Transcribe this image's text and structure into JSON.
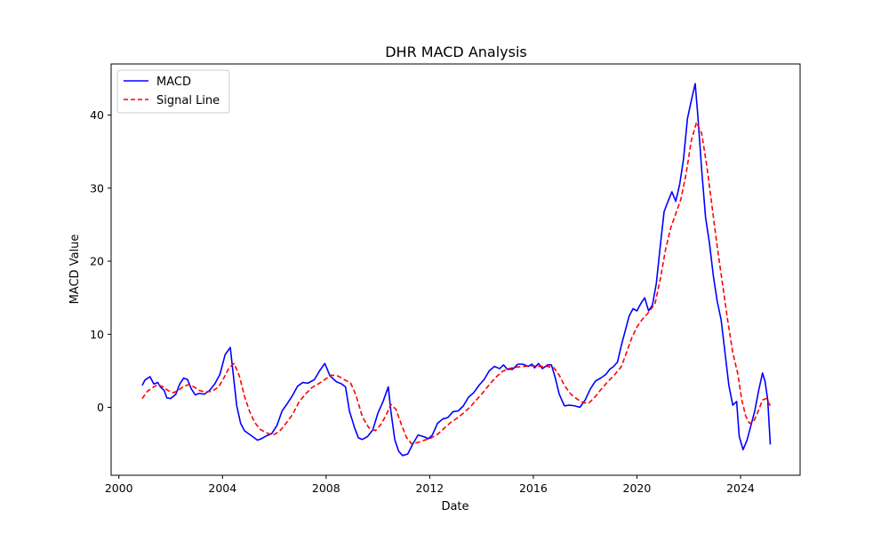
{
  "chart_data": {
    "type": "line",
    "title": "DHR MACD Analysis",
    "xlabel": "Date",
    "ylabel": "MACD Value",
    "xlim": [
      1999.7,
      2026.3
    ],
    "ylim": [
      -9.3,
      47.0
    ],
    "x_ticks": [
      2000,
      2004,
      2008,
      2012,
      2016,
      2020,
      2024
    ],
    "x_tick_labels": [
      "2000",
      "2004",
      "2008",
      "2012",
      "2016",
      "2020",
      "2024"
    ],
    "y_ticks": [
      0,
      10,
      20,
      30,
      40
    ],
    "y_tick_labels": [
      "0",
      "10",
      "20",
      "30",
      "40"
    ],
    "grid": false,
    "legend": {
      "placement": "top-left"
    },
    "series": [
      {
        "name": "MACD",
        "color": "#0000ff",
        "dash": "solid",
        "points": [
          [
            2000.9,
            3.0
          ],
          [
            2001.0,
            3.7
          ],
          [
            2001.2,
            4.2
          ],
          [
            2001.35,
            3.2
          ],
          [
            2001.5,
            3.4
          ],
          [
            2001.6,
            2.8
          ],
          [
            2001.75,
            2.3
          ],
          [
            2001.85,
            1.3
          ],
          [
            2002.0,
            1.2
          ],
          [
            2002.2,
            1.8
          ],
          [
            2002.35,
            3.2
          ],
          [
            2002.5,
            4.0
          ],
          [
            2002.65,
            3.8
          ],
          [
            2002.8,
            2.5
          ],
          [
            2002.95,
            1.7
          ],
          [
            2003.1,
            1.9
          ],
          [
            2003.3,
            1.8
          ],
          [
            2003.5,
            2.3
          ],
          [
            2003.7,
            3.2
          ],
          [
            2003.9,
            4.5
          ],
          [
            2004.1,
            7.2
          ],
          [
            2004.3,
            8.2
          ],
          [
            2004.4,
            5.0
          ],
          [
            2004.55,
            0.2
          ],
          [
            2004.7,
            -2.2
          ],
          [
            2004.85,
            -3.2
          ],
          [
            2005.0,
            -3.6
          ],
          [
            2005.2,
            -4.1
          ],
          [
            2005.35,
            -4.5
          ],
          [
            2005.5,
            -4.3
          ],
          [
            2005.7,
            -3.9
          ],
          [
            2005.9,
            -3.6
          ],
          [
            2006.1,
            -2.5
          ],
          [
            2006.3,
            -0.5
          ],
          [
            2006.5,
            0.5
          ],
          [
            2006.7,
            1.6
          ],
          [
            2006.9,
            2.9
          ],
          [
            2007.1,
            3.4
          ],
          [
            2007.3,
            3.3
          ],
          [
            2007.55,
            3.8
          ],
          [
            2007.75,
            5.0
          ],
          [
            2007.95,
            6.0
          ],
          [
            2008.15,
            4.3
          ],
          [
            2008.4,
            3.5
          ],
          [
            2008.6,
            3.2
          ],
          [
            2008.75,
            2.8
          ],
          [
            2008.9,
            -0.5
          ],
          [
            2009.1,
            -2.8
          ],
          [
            2009.25,
            -4.2
          ],
          [
            2009.4,
            -4.4
          ],
          [
            2009.6,
            -4.0
          ],
          [
            2009.8,
            -3.1
          ],
          [
            2010.0,
            -0.8
          ],
          [
            2010.2,
            0.8
          ],
          [
            2010.4,
            2.8
          ],
          [
            2010.5,
            -0.5
          ],
          [
            2010.65,
            -4.4
          ],
          [
            2010.8,
            -6.0
          ],
          [
            2010.95,
            -6.6
          ],
          [
            2011.15,
            -6.4
          ],
          [
            2011.35,
            -5.0
          ],
          [
            2011.55,
            -3.8
          ],
          [
            2011.75,
            -4.0
          ],
          [
            2011.95,
            -4.3
          ],
          [
            2012.1,
            -3.8
          ],
          [
            2012.3,
            -2.2
          ],
          [
            2012.5,
            -1.6
          ],
          [
            2012.7,
            -1.4
          ],
          [
            2012.9,
            -0.6
          ],
          [
            2013.1,
            -0.5
          ],
          [
            2013.3,
            0.2
          ],
          [
            2013.5,
            1.4
          ],
          [
            2013.7,
            2.0
          ],
          [
            2013.9,
            3.0
          ],
          [
            2014.1,
            3.8
          ],
          [
            2014.3,
            5.0
          ],
          [
            2014.5,
            5.6
          ],
          [
            2014.7,
            5.3
          ],
          [
            2014.85,
            5.8
          ],
          [
            2015.0,
            5.2
          ],
          [
            2015.2,
            5.2
          ],
          [
            2015.4,
            5.9
          ],
          [
            2015.6,
            5.9
          ],
          [
            2015.8,
            5.6
          ],
          [
            2015.95,
            5.9
          ],
          [
            2016.05,
            5.4
          ],
          [
            2016.2,
            6.0
          ],
          [
            2016.35,
            5.3
          ],
          [
            2016.55,
            5.8
          ],
          [
            2016.7,
            5.8
          ],
          [
            2016.85,
            4.0
          ],
          [
            2017.0,
            1.8
          ],
          [
            2017.2,
            0.2
          ],
          [
            2017.4,
            0.3
          ],
          [
            2017.6,
            0.2
          ],
          [
            2017.8,
            0.0
          ],
          [
            2018.0,
            1.0
          ],
          [
            2018.2,
            2.5
          ],
          [
            2018.4,
            3.6
          ],
          [
            2018.6,
            4.0
          ],
          [
            2018.8,
            4.5
          ],
          [
            2018.95,
            5.2
          ],
          [
            2019.1,
            5.6
          ],
          [
            2019.25,
            6.2
          ],
          [
            2019.4,
            8.5
          ],
          [
            2019.55,
            10.5
          ],
          [
            2019.7,
            12.5
          ],
          [
            2019.85,
            13.5
          ],
          [
            2020.0,
            13.2
          ],
          [
            2020.15,
            14.2
          ],
          [
            2020.3,
            15.0
          ],
          [
            2020.45,
            13.2
          ],
          [
            2020.6,
            14.0
          ],
          [
            2020.75,
            17.0
          ],
          [
            2020.9,
            22.0
          ],
          [
            2021.05,
            26.8
          ],
          [
            2021.2,
            28.2
          ],
          [
            2021.35,
            29.5
          ],
          [
            2021.5,
            28.2
          ],
          [
            2021.65,
            30.5
          ],
          [
            2021.8,
            34.0
          ],
          [
            2021.95,
            39.5
          ],
          [
            2022.1,
            42.0
          ],
          [
            2022.25,
            44.3
          ],
          [
            2022.35,
            40.0
          ],
          [
            2022.5,
            32.5
          ],
          [
            2022.65,
            26.0
          ],
          [
            2022.8,
            22.5
          ],
          [
            2022.95,
            18.0
          ],
          [
            2023.1,
            14.5
          ],
          [
            2023.25,
            12.0
          ],
          [
            2023.4,
            7.5
          ],
          [
            2023.55,
            3.0
          ],
          [
            2023.7,
            0.3
          ],
          [
            2023.85,
            0.8
          ],
          [
            2023.95,
            -4.0
          ],
          [
            2024.1,
            -5.8
          ],
          [
            2024.25,
            -4.5
          ],
          [
            2024.4,
            -2.5
          ],
          [
            2024.55,
            -0.5
          ],
          [
            2024.7,
            2.3
          ],
          [
            2024.85,
            4.7
          ],
          [
            2024.95,
            3.5
          ],
          [
            2025.05,
            1.0
          ],
          [
            2025.15,
            -5.1
          ]
        ]
      },
      {
        "name": "Signal Line",
        "color": "#ff0000",
        "dash": "dashed",
        "points": [
          [
            2000.9,
            1.2
          ],
          [
            2001.1,
            2.2
          ],
          [
            2001.3,
            2.7
          ],
          [
            2001.5,
            3.1
          ],
          [
            2001.7,
            2.8
          ],
          [
            2001.9,
            2.3
          ],
          [
            2002.1,
            2.0
          ],
          [
            2002.3,
            2.3
          ],
          [
            2002.5,
            2.9
          ],
          [
            2002.7,
            3.1
          ],
          [
            2002.9,
            2.8
          ],
          [
            2003.1,
            2.3
          ],
          [
            2003.35,
            2.1
          ],
          [
            2003.6,
            2.2
          ],
          [
            2003.85,
            2.8
          ],
          [
            2004.05,
            4.0
          ],
          [
            2004.25,
            5.4
          ],
          [
            2004.45,
            6.0
          ],
          [
            2004.65,
            4.3
          ],
          [
            2004.85,
            1.5
          ],
          [
            2005.05,
            -0.6
          ],
          [
            2005.25,
            -2.1
          ],
          [
            2005.45,
            -3.0
          ],
          [
            2005.7,
            -3.5
          ],
          [
            2005.95,
            -3.8
          ],
          [
            2006.2,
            -3.3
          ],
          [
            2006.45,
            -2.2
          ],
          [
            2006.7,
            -1.0
          ],
          [
            2006.95,
            0.7
          ],
          [
            2007.2,
            1.8
          ],
          [
            2007.45,
            2.7
          ],
          [
            2007.7,
            3.2
          ],
          [
            2007.95,
            3.8
          ],
          [
            2008.2,
            4.4
          ],
          [
            2008.45,
            4.3
          ],
          [
            2008.7,
            3.8
          ],
          [
            2008.95,
            3.3
          ],
          [
            2009.15,
            1.7
          ],
          [
            2009.4,
            -1.3
          ],
          [
            2009.65,
            -2.8
          ],
          [
            2009.9,
            -3.2
          ],
          [
            2010.1,
            -2.4
          ],
          [
            2010.3,
            -1.2
          ],
          [
            2010.5,
            0.4
          ],
          [
            2010.7,
            -0.3
          ],
          [
            2010.9,
            -2.3
          ],
          [
            2011.1,
            -4.1
          ],
          [
            2011.3,
            -5.0
          ],
          [
            2011.55,
            -4.8
          ],
          [
            2011.8,
            -4.5
          ],
          [
            2012.05,
            -4.2
          ],
          [
            2012.3,
            -3.7
          ],
          [
            2012.55,
            -2.9
          ],
          [
            2012.8,
            -2.1
          ],
          [
            2013.05,
            -1.5
          ],
          [
            2013.3,
            -0.8
          ],
          [
            2013.55,
            0.0
          ],
          [
            2013.8,
            1.0
          ],
          [
            2014.05,
            2.0
          ],
          [
            2014.3,
            3.1
          ],
          [
            2014.55,
            4.1
          ],
          [
            2014.8,
            4.9
          ],
          [
            2015.05,
            5.3
          ],
          [
            2015.35,
            5.5
          ],
          [
            2015.65,
            5.6
          ],
          [
            2015.95,
            5.7
          ],
          [
            2016.25,
            5.6
          ],
          [
            2016.55,
            5.6
          ],
          [
            2016.8,
            5.4
          ],
          [
            2017.0,
            4.4
          ],
          [
            2017.2,
            3.0
          ],
          [
            2017.45,
            1.8
          ],
          [
            2017.7,
            1.1
          ],
          [
            2017.95,
            0.6
          ],
          [
            2018.15,
            0.6
          ],
          [
            2018.4,
            1.5
          ],
          [
            2018.65,
            2.6
          ],
          [
            2018.9,
            3.6
          ],
          [
            2019.15,
            4.5
          ],
          [
            2019.4,
            5.6
          ],
          [
            2019.6,
            7.5
          ],
          [
            2019.8,
            9.5
          ],
          [
            2020.0,
            11.0
          ],
          [
            2020.2,
            12.0
          ],
          [
            2020.45,
            13.0
          ],
          [
            2020.7,
            14.2
          ],
          [
            2020.9,
            17.5
          ],
          [
            2021.1,
            21.5
          ],
          [
            2021.3,
            24.5
          ],
          [
            2021.5,
            26.5
          ],
          [
            2021.7,
            28.5
          ],
          [
            2021.9,
            32.0
          ],
          [
            2022.1,
            36.5
          ],
          [
            2022.3,
            39.0
          ],
          [
            2022.5,
            37.5
          ],
          [
            2022.7,
            33.0
          ],
          [
            2022.9,
            27.5
          ],
          [
            2023.1,
            22.0
          ],
          [
            2023.3,
            17.0
          ],
          [
            2023.5,
            12.0
          ],
          [
            2023.7,
            7.5
          ],
          [
            2023.9,
            4.5
          ],
          [
            2024.05,
            1.0
          ],
          [
            2024.2,
            -1.2
          ],
          [
            2024.35,
            -2.2
          ],
          [
            2024.5,
            -2.0
          ],
          [
            2024.65,
            -0.8
          ],
          [
            2024.85,
            1.0
          ],
          [
            2025.0,
            1.2
          ],
          [
            2025.15,
            0.2
          ]
        ]
      }
    ]
  }
}
